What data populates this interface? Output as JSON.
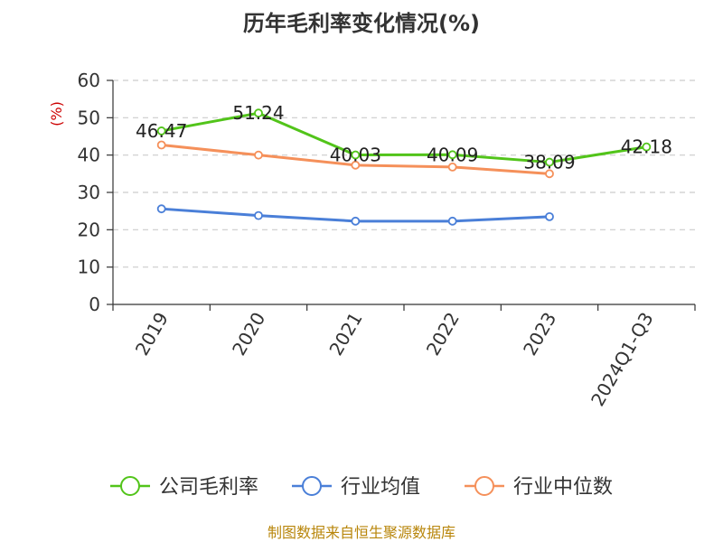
{
  "chart_data": {
    "type": "line",
    "title": "历年毛利率变化情况(%)",
    "ylabel": "(%)",
    "xlabel": "",
    "categories": [
      "2019",
      "2020",
      "2021",
      "2022",
      "2023",
      "2024Q1-Q3"
    ],
    "ylim": [
      0,
      60
    ],
    "yticks": [
      0,
      10,
      20,
      30,
      40,
      50,
      60
    ],
    "grid": true,
    "legend_position": "bottom",
    "series": [
      {
        "name": "公司毛利率",
        "color": "#52c41a",
        "values": [
          46.47,
          51.24,
          40.03,
          40.09,
          38.09,
          42.18
        ],
        "labels": [
          "46.47",
          "51.24",
          "40.03",
          "40.09",
          "38.09",
          "42.18"
        ]
      },
      {
        "name": "行业均值",
        "color": "#4a7fd8",
        "values": [
          25.6,
          23.8,
          22.3,
          22.3,
          23.5,
          null
        ]
      },
      {
        "name": "行业中位数",
        "color": "#f5905a",
        "values": [
          42.7,
          40.0,
          37.3,
          36.8,
          35.0,
          null
        ]
      }
    ]
  },
  "source": "制图数据来自恒生聚源数据库"
}
